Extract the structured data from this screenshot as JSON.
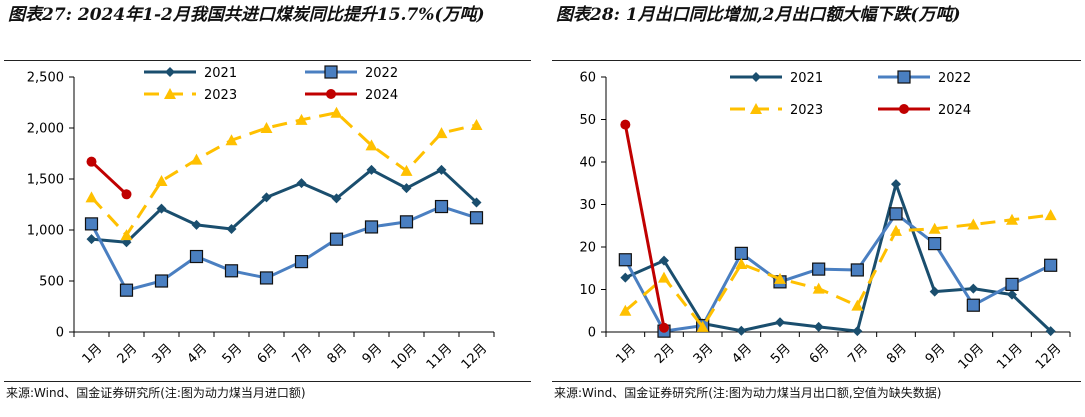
{
  "left": {
    "title_prefix": "图表27:",
    "title_text": "2024年1-2月我国共进口煤炭同比提升15.7%(万吨)",
    "source": "来源:Wind、国金证券研究所(注:图为动力煤当月进口额)"
  },
  "right": {
    "title_prefix": "图表28:",
    "title_text": "1月出口同比增加,2月出口额大幅下跌(万吨)",
    "source": "来源:Wind、国金证券研究所(注:图为动力煤当月出口额,空值为缺失数据)"
  },
  "colors": {
    "2021": "#1a4e6e",
    "2022": "#4a7fc1",
    "2023": "#ffc000",
    "2024": "#c00000"
  },
  "chart_data": [
    {
      "type": "line",
      "categories": [
        "1月",
        "2月",
        "3月",
        "4月",
        "5月",
        "6月",
        "7月",
        "8月",
        "9月",
        "10月",
        "11月",
        "12月"
      ],
      "ylim": [
        0,
        2500
      ],
      "yticks": [
        0,
        500,
        1000,
        1500,
        2000,
        2500
      ],
      "ytick_labels": [
        "0",
        "500",
        "1,000",
        "1,500",
        "2,000",
        "2,500"
      ],
      "grid": false,
      "legend_position": "top",
      "series": [
        {
          "name": "2021",
          "marker": "diamond",
          "dash": "solid",
          "values": [
            910,
            880,
            1210,
            1050,
            1010,
            1320,
            1460,
            1310,
            1590,
            1410,
            1590,
            1270
          ]
        },
        {
          "name": "2022",
          "marker": "square",
          "dash": "solid",
          "values": [
            1060,
            410,
            500,
            740,
            600,
            530,
            690,
            910,
            1030,
            1080,
            1230,
            1120
          ]
        },
        {
          "name": "2023",
          "marker": "triangle",
          "dash": "dashed",
          "values": [
            1320,
            950,
            1480,
            1690,
            1880,
            2000,
            2080,
            2150,
            1830,
            1580,
            1950,
            2030
          ]
        },
        {
          "name": "2024",
          "marker": "circle",
          "dash": "solid",
          "values": [
            1670,
            1350,
            null,
            null,
            null,
            null,
            null,
            null,
            null,
            null,
            null,
            null
          ]
        }
      ]
    },
    {
      "type": "line",
      "categories": [
        "1月",
        "2月",
        "3月",
        "4月",
        "5月",
        "6月",
        "7月",
        "8月",
        "9月",
        "10月",
        "11月",
        "12月"
      ],
      "ylim": [
        0,
        60
      ],
      "yticks": [
        0,
        10,
        20,
        30,
        40,
        50,
        60
      ],
      "ytick_labels": [
        "0",
        "10",
        "20",
        "30",
        "40",
        "50",
        "60"
      ],
      "grid": false,
      "legend_position": "top",
      "series": [
        {
          "name": "2021",
          "marker": "diamond",
          "dash": "solid",
          "values": [
            12.8,
            16.8,
            2.0,
            0.3,
            2.3,
            1.2,
            0.2,
            34.8,
            9.5,
            10.2,
            8.8,
            0.2
          ]
        },
        {
          "name": "2022",
          "marker": "square",
          "dash": "solid",
          "values": [
            17.0,
            0.2,
            1.5,
            18.5,
            11.8,
            14.8,
            14.6,
            27.8,
            20.8,
            6.3,
            11.2,
            15.7
          ]
        },
        {
          "name": "2023",
          "marker": "triangle",
          "dash": "dashed",
          "values": [
            5.0,
            12.8,
            1.2,
            16.0,
            12.5,
            10.2,
            6.2,
            23.8,
            24.3,
            25.3,
            26.4,
            27.5
          ]
        },
        {
          "name": "2024",
          "marker": "circle",
          "dash": "solid",
          "values": [
            48.8,
            1.0,
            null,
            null,
            null,
            null,
            null,
            null,
            null,
            null,
            null,
            null
          ]
        }
      ]
    }
  ]
}
